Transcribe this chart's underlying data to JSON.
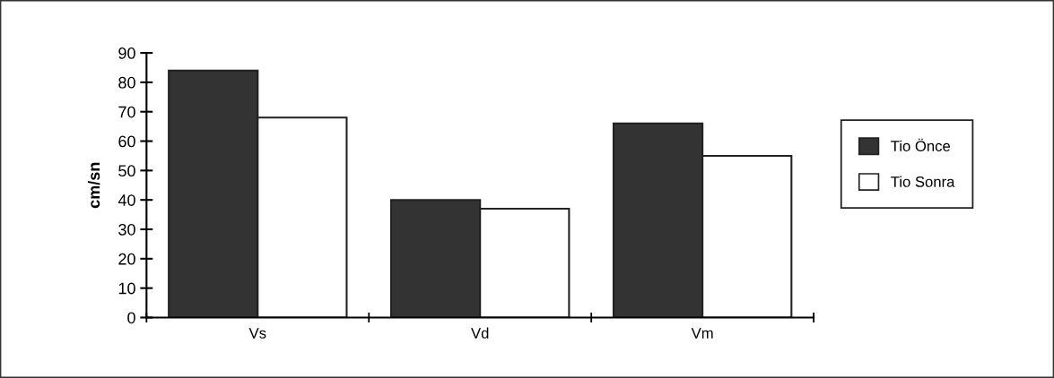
{
  "chart_data": {
    "type": "bar",
    "ylabel": "cm/sn",
    "categories": [
      "Vs",
      "Vd",
      "Vm"
    ],
    "series": [
      {
        "name": "Tio Önce",
        "color": "#333333",
        "values": [
          84,
          40,
          66
        ]
      },
      {
        "name": "Tio Sonra",
        "color": "#ffffff",
        "values": [
          68,
          37,
          55
        ]
      }
    ],
    "ylim": [
      0,
      90
    ],
    "yticks": [
      0,
      10,
      20,
      30,
      40,
      50,
      60,
      70,
      80,
      90
    ],
    "grid": false,
    "legend": "right"
  }
}
